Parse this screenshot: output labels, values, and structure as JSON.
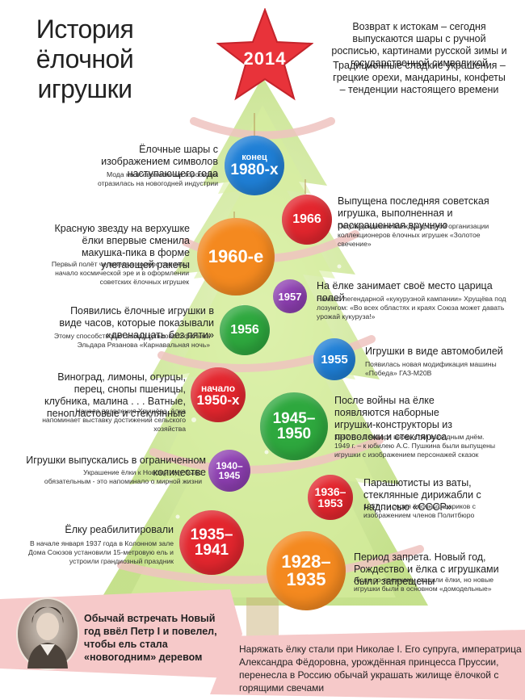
{
  "title": {
    "line1": "История",
    "line2": "ёлочной",
    "line3": "игрушки"
  },
  "star": {
    "year": "2014",
    "color": "#e8333a"
  },
  "top_right": {
    "text1": "Возврат к истокам – сегодня выпускаются шары с ручной росписью, картинами русской зимы и государственной символикой",
    "text2": "Традиционные сладкие украшения – грецкие орехи, мандарины, конфеты – тенденции настоящего времени"
  },
  "balls": {
    "b1980": {
      "line1": "конец",
      "line2": "1980-х",
      "color": "#1f7fd6"
    },
    "b1966": {
      "line1": "1966",
      "color": "#e3262e"
    },
    "b1960": {
      "line1": "1960-е",
      "color": "#f4891f"
    },
    "b1957": {
      "line1": "1957",
      "color": "#8e3fb2"
    },
    "b1956": {
      "line1": "1956",
      "color": "#2ea83e"
    },
    "b1955": {
      "line1": "1955",
      "color": "#1f7fd6"
    },
    "b1950": {
      "line1": "начало",
      "line2": "1950-х",
      "color": "#e3262e"
    },
    "b1945": {
      "line1": "1945–",
      "line2": "1950",
      "color": "#2ea83e"
    },
    "b1940": {
      "line1": "1940–",
      "line2": "1945",
      "color": "#8e3fb2"
    },
    "b1936": {
      "line1": "1936–",
      "line2": "1953",
      "color": "#e3262e"
    },
    "b1935": {
      "line1": "1935–",
      "line2": "1941",
      "color": "#e3262e"
    },
    "b1928": {
      "line1": "1928–",
      "line2": "1935",
      "color": "#f4891f"
    }
  },
  "events": {
    "e1980": {
      "head": "Ёлочные шары с изображением символов наступающего года",
      "sub": "Мода на всевозможные гороскопы отразилась на новогодней индустрии"
    },
    "e1966": {
      "head": "Выпущена последняя советская игрушка, выполненная и раскрашенная вручную",
      "sub": "По утверждению Международной организации коллекционеров ёлочных игрушек «Золотое свечение»"
    },
    "e1960": {
      "head": "Красную звезду на верхушке ёлки впервые сменила макушка-пика в форме улетающей ракеты",
      "sub": "Первый полёт человека в космос положил начало космической эре и в оформлении советских ёлочных игрушек"
    },
    "e1957": {
      "head": "На ёлке занимает своё место царица полей",
      "sub": "Начало легендарной «кукурузной кампании» Хрущёва под лозунгом: «Во всех областях и краях Союза может давать урожай кукуруза!»"
    },
    "e1956": {
      "head": "Появились ёлочные игрушки в виде часов, которые показывали «двенадцать без пяти»",
      "sub": "Этому способствовал  выход культового фильма Эльдара Рязанова «Карнавальная ночь»"
    },
    "e1955": {
      "head": "Игрушки в виде автомобилей",
      "sub": "Появилась новая модификация машины «Победа» ГАЗ-М20В"
    },
    "e1950": {
      "head": "Виноград, лимоны, огурцы, перец, снопы пшеницы, клубника, малина . . . Ватные, пенопластовые и стеклянные",
      "sub": "Начало правления Хрущёва, ёлка напоминает выставку достижений сельского хозяйства"
    },
    "e1945": {
      "head": "После войны на ёлке появляются наборные игрушки-конструкторы из проволоки и стекляруса",
      "sub1": "1947 г. – 1 января вновь стал выходным днём.",
      "sub2": "1949 г. – к юбилею А.С. Пушкина были выпущены игрушки с изображением персонажей сказок"
    },
    "e1940": {
      "head": "Игрушки выпускались в ограниченном количестве",
      "sub": "Украшение ёлки к Новому году было обязательным - это напоминало о мирной жизни"
    },
    "e1936": {
      "head": "Парашютисты из ваты, стеклянные дирижабли с надписью «СССР»",
      "sub": "1937 г. – серия ёлочных шариков с изображением членов Политбюро"
    },
    "e1935": {
      "head": "Ёлку реабилитировали",
      "sub": "В начале января 1937 года в Колонном зале Дома Союзов установили 15-метровую ель и устроили грандиозный праздник"
    },
    "e1928": {
      "head": "Период запрета. Новый год, Рождество и ёлка с игрушками были запрещены",
      "sub": "Люди по-прежнему ставили ёлки, но новые игрушки были в основном «домодельные»"
    }
  },
  "bottom": {
    "peter": "Обычай встречать Новый год ввёл Петр I и повелел, чтобы ель стала «новогодним» деревом",
    "nikolai": "Наряжать ёлку стали при Николае I. Его супруга, императрица Александра Фёдоровна, урождённая принцесса Пруссии, перенесла в Россию обычай украшать жилище ёлочкой с  горящими свечами"
  },
  "colors": {
    "tree": "#cfe89a",
    "tree_dark": "#b5d97a",
    "ribbon": "#f0c7c4",
    "banner": "#f6c9c9"
  }
}
